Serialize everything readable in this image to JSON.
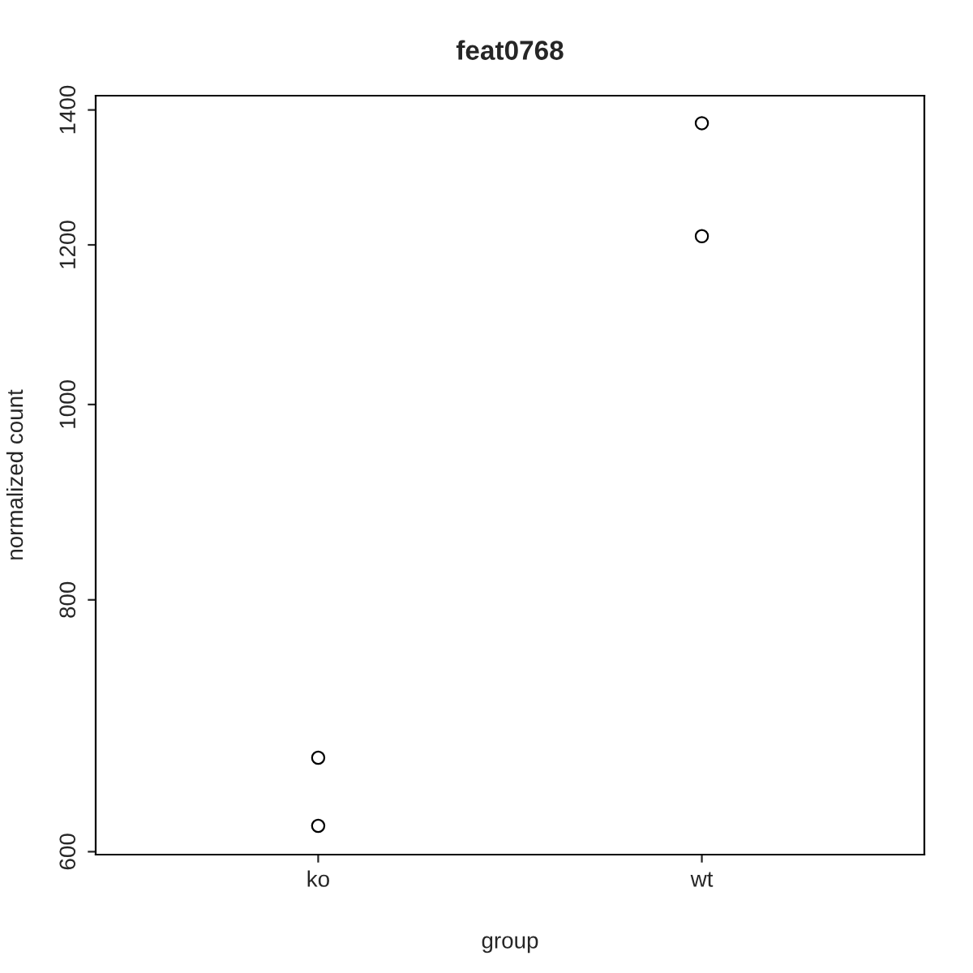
{
  "chart_data": {
    "type": "scatter",
    "title": "feat0768",
    "xlabel": "group",
    "ylabel": "normalized count",
    "categories": [
      "ko",
      "wt"
    ],
    "series": [
      {
        "color": "#000000",
        "x": [
          "ko",
          "ko",
          "wt",
          "wt"
        ],
        "values": [
          668,
          618,
          1379,
          1212
        ]
      }
    ],
    "marker": "circle",
    "log": "y",
    "ylim": [
      598,
      1423
    ],
    "yticks": [
      600,
      800,
      1000,
      1200,
      1400
    ],
    "grid": false,
    "legend": false
  }
}
